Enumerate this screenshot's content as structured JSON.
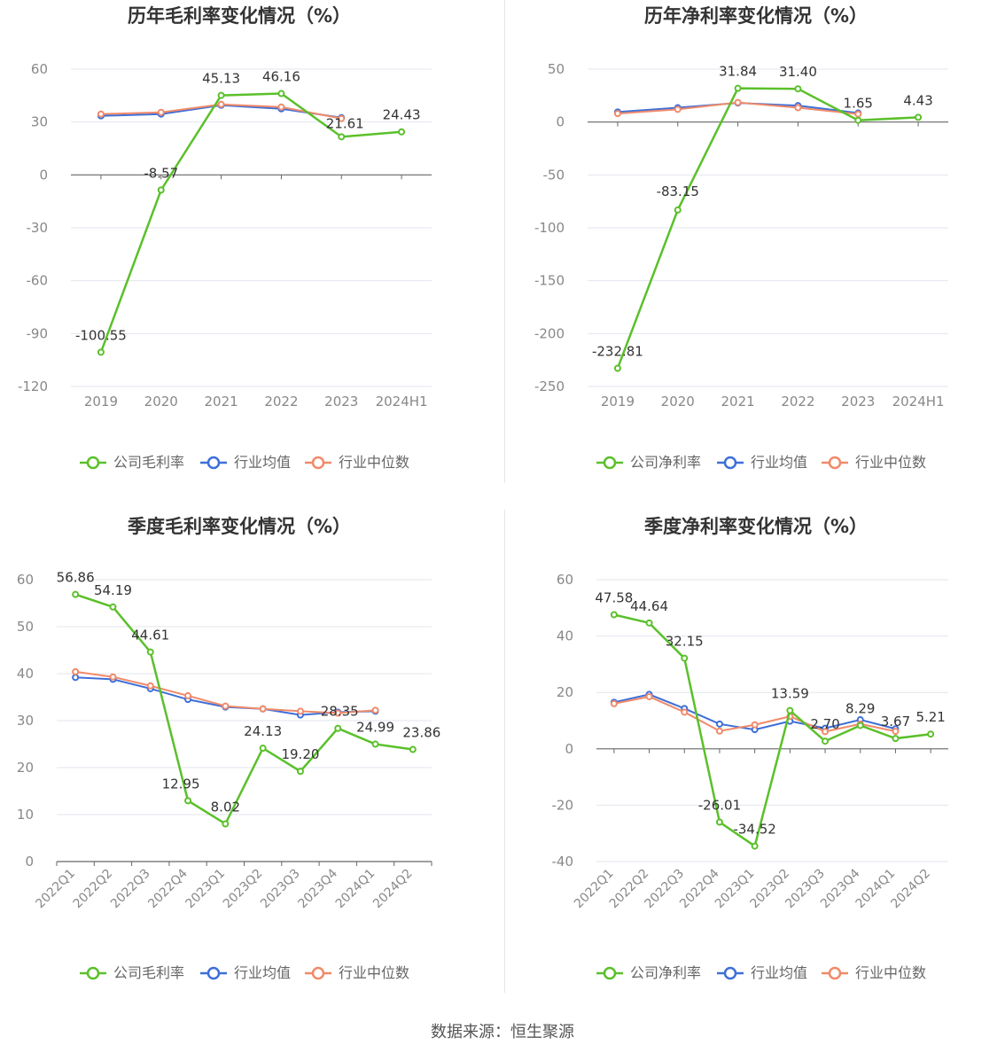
{
  "source_text": "数据来源：恒生聚源",
  "colors": {
    "company": "#5ac02a",
    "avg": "#3e6fd8",
    "median": "#f08a6a",
    "grid": "#e3e6ee",
    "axis": "#888888",
    "label": "#333333",
    "tick": "#888888",
    "legend_text": "#666666"
  },
  "chart_data": [
    {
      "type": "line",
      "title": "历年毛利率变化情况（%）",
      "categories": [
        "2019",
        "2020",
        "2021",
        "2022",
        "2023",
        "2024H1"
      ],
      "yticks": [
        60,
        30,
        0,
        -30,
        -60,
        -90,
        -120
      ],
      "ylim": [
        -120,
        60
      ],
      "rotate_x": false,
      "series": [
        {
          "name": "公司毛利率",
          "key": "company",
          "values": [
            -100.55,
            -8.57,
            45.13,
            46.16,
            21.61,
            24.43
          ],
          "labels": [
            "-100.55",
            "-8.57",
            "45.13",
            "46.16",
            "21.61",
            "24.43"
          ]
        },
        {
          "name": "行业均值",
          "key": "avg",
          "values": [
            33.5,
            34.5,
            39.5,
            37.5,
            32.5,
            null
          ]
        },
        {
          "name": "行业中位数",
          "key": "median",
          "values": [
            34.5,
            35.5,
            40.0,
            38.5,
            32.0,
            null
          ]
        }
      ]
    },
    {
      "type": "line",
      "title": "历年净利率变化情况（%）",
      "categories": [
        "2019",
        "2020",
        "2021",
        "2022",
        "2023",
        "2024H1"
      ],
      "yticks": [
        50,
        0,
        -50,
        -100,
        -150,
        -200,
        -250
      ],
      "ylim": [
        -250,
        50
      ],
      "rotate_x": false,
      "series": [
        {
          "name": "公司净利率",
          "key": "company",
          "values": [
            -232.81,
            -83.15,
            31.84,
            31.4,
            1.65,
            4.43
          ],
          "labels": [
            "-232.81",
            "-83.15",
            "31.84",
            "31.40",
            "1.65",
            "4.43"
          ]
        },
        {
          "name": "行业均值",
          "key": "avg",
          "values": [
            9.5,
            13.5,
            18.0,
            15.5,
            8.5,
            null
          ]
        },
        {
          "name": "行业中位数",
          "key": "median",
          "values": [
            8.0,
            12.0,
            18.5,
            13.5,
            7.5,
            null
          ]
        }
      ]
    },
    {
      "type": "line",
      "title": "季度毛利率变化情况（%）",
      "categories": [
        "2022Q1",
        "2022Q2",
        "2022Q3",
        "2022Q4",
        "2023Q1",
        "2023Q2",
        "2023Q3",
        "2023Q4",
        "2024Q1",
        "2024Q2"
      ],
      "yticks": [
        60,
        50,
        40,
        30,
        20,
        10,
        0
      ],
      "ylim": [
        0,
        60
      ],
      "rotate_x": true,
      "series": [
        {
          "name": "公司毛利率",
          "key": "company",
          "values": [
            56.86,
            54.19,
            44.61,
            12.95,
            8.02,
            24.13,
            19.2,
            28.35,
            24.99,
            23.86
          ],
          "labels": [
            "56.86",
            "54.19",
            "44.61",
            "12.95",
            "8.02",
            "24.13",
            "19.20",
            "28.35",
            "24.99",
            "23.86"
          ]
        },
        {
          "name": "行业均值",
          "key": "avg",
          "values": [
            39.2,
            38.8,
            36.8,
            34.5,
            32.9,
            32.5,
            31.2,
            31.8,
            32.0,
            null
          ]
        },
        {
          "name": "行业中位数",
          "key": "median",
          "values": [
            40.4,
            39.3,
            37.4,
            35.3,
            33.1,
            32.5,
            32.0,
            31.6,
            32.2,
            null
          ]
        }
      ]
    },
    {
      "type": "line",
      "title": "季度净利率变化情况（%）",
      "categories": [
        "2022Q1",
        "2022Q2",
        "2022Q3",
        "2022Q4",
        "2023Q1",
        "2023Q2",
        "2023Q3",
        "2023Q4",
        "2024Q1",
        "2024Q2"
      ],
      "yticks": [
        60,
        40,
        20,
        0,
        -20,
        -40
      ],
      "ylim": [
        -40,
        60
      ],
      "rotate_x": true,
      "series": [
        {
          "name": "公司净利率",
          "key": "company",
          "values": [
            47.58,
            44.64,
            32.15,
            -26.01,
            -34.52,
            13.59,
            2.7,
            8.29,
            3.67,
            5.21
          ],
          "labels": [
            "47.58",
            "44.64",
            "32.15",
            "-26.01",
            "-34.52",
            "13.59",
            "2.70",
            "8.29",
            "3.67",
            "5.21"
          ]
        },
        {
          "name": "行业均值",
          "key": "avg",
          "values": [
            16.5,
            19.3,
            14.3,
            8.8,
            6.8,
            9.8,
            7.3,
            10.3,
            7.1,
            null
          ]
        },
        {
          "name": "行业中位数",
          "key": "median",
          "values": [
            16.0,
            18.5,
            13.0,
            6.3,
            8.5,
            11.5,
            6.1,
            8.8,
            6.2,
            null
          ]
        }
      ]
    }
  ]
}
